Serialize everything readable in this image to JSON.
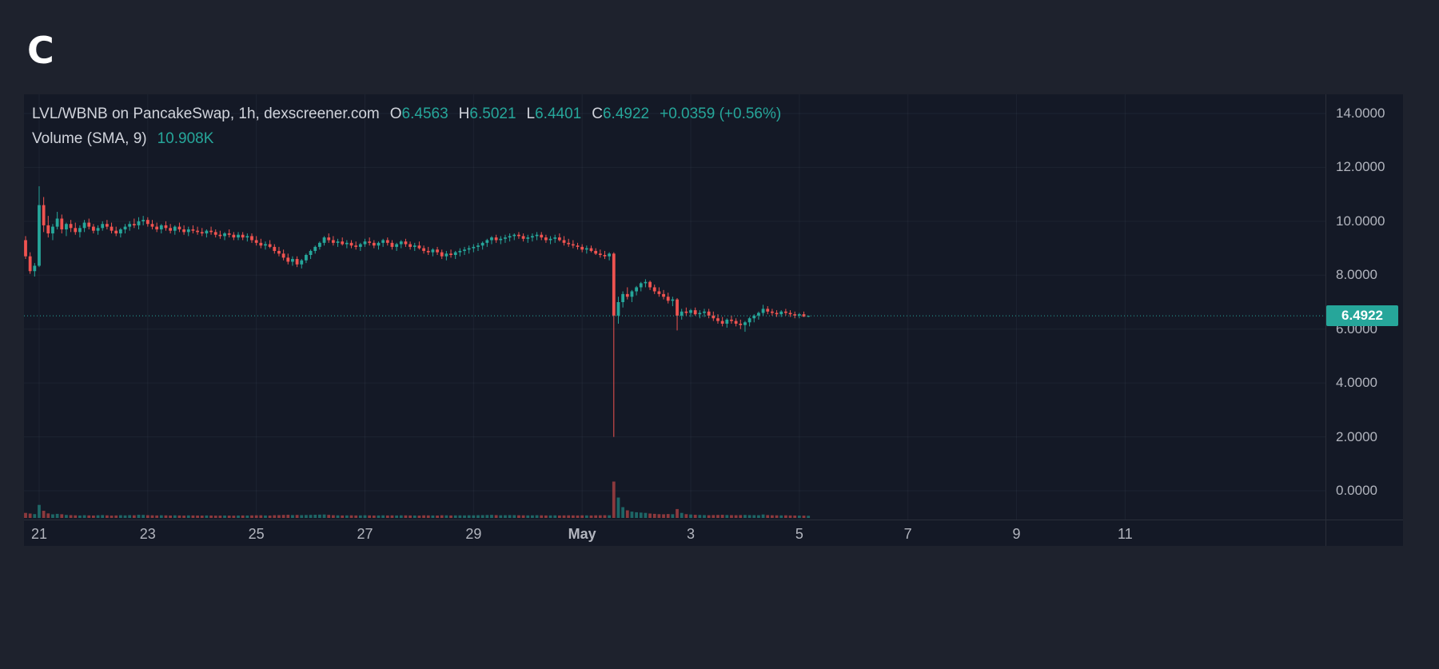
{
  "logo": {
    "text": "C"
  },
  "header": {
    "title": "LVL/WBNB on PancakeSwap, 1h, dexscreener.com",
    "o_label": "O",
    "o_value": "6.4563",
    "h_label": "H",
    "h_value": "6.5021",
    "l_label": "L",
    "l_value": "6.4401",
    "c_label": "C",
    "c_value": "6.4922",
    "change": "+0.0359 (+0.56%)",
    "volume_label": "Volume (SMA, 9)",
    "volume_value": "10.908K"
  },
  "current_price": {
    "label": "6.4922",
    "value": 6.4922
  },
  "colors": {
    "page_bg": "#1e222d",
    "chart_bg": "#141926",
    "up": "#26a69a",
    "down": "#ef5350",
    "accent": "#26a69a",
    "text": "#b2b5be",
    "title_text": "#d1d4dc",
    "grid": "rgba(140,155,180,0.08)",
    "axis_border": "#2a2e39",
    "badge_text": "#ffffff",
    "vol_up": "rgba(38,166,154,0.55)",
    "vol_down": "rgba(239,83,80,0.55)"
  },
  "price_axis": {
    "ticks": [
      {
        "label": "14.0000",
        "value": 14
      },
      {
        "label": "12.0000",
        "value": 12
      },
      {
        "label": "10.0000",
        "value": 10
      },
      {
        "label": "8.0000",
        "value": 8
      },
      {
        "label": "6.0000",
        "value": 6
      },
      {
        "label": "4.0000",
        "value": 4
      },
      {
        "label": "2.0000",
        "value": 2
      },
      {
        "label": "0.0000",
        "value": 0
      }
    ]
  },
  "time_axis": {
    "ticks": [
      {
        "label": "21",
        "idx": 3
      },
      {
        "label": "23",
        "idx": 27
      },
      {
        "label": "25",
        "idx": 51
      },
      {
        "label": "27",
        "idx": 75
      },
      {
        "label": "29",
        "idx": 99
      },
      {
        "label": "May",
        "idx": 123,
        "bold": true
      },
      {
        "label": "3",
        "idx": 147
      },
      {
        "label": "5",
        "idx": 171
      },
      {
        "label": "7",
        "idx": 195
      },
      {
        "label": "9",
        "idx": 219
      },
      {
        "label": "11",
        "idx": 243
      }
    ]
  },
  "chart_data": {
    "type": "candlestick",
    "title": "LVL/WBNB on PancakeSwap, 1h, dexscreener.com",
    "symbol": "LVL/WBNB",
    "exchange": "PancakeSwap",
    "interval": "1h",
    "ohlc_readout": {
      "open": 6.4563,
      "high": 6.5021,
      "low": 6.4401,
      "close": 6.4922,
      "change": "+0.0359 (+0.56%)"
    },
    "volume_sma_readout": "10.908K",
    "ylim": [
      -1.07,
      14.71
    ],
    "x_range": [
      "Apr 21",
      "May 11"
    ],
    "legend_position": "top-left",
    "grid": true,
    "note": "candles estimated from pixels, aggregated ~2h per bar, format [open,high,low,close,volumeK]",
    "candles": [
      [
        9.3,
        9.45,
        8.6,
        8.7,
        6.0
      ],
      [
        8.7,
        8.85,
        8.05,
        8.15,
        5.0
      ],
      [
        8.15,
        8.45,
        7.95,
        8.35,
        4.1
      ],
      [
        8.35,
        11.3,
        8.3,
        10.6,
        18.5
      ],
      [
        10.6,
        10.9,
        9.6,
        9.85,
        9.3
      ],
      [
        9.85,
        10.2,
        9.4,
        9.55,
        5.2
      ],
      [
        9.55,
        9.9,
        9.3,
        9.8,
        3.8
      ],
      [
        9.8,
        10.35,
        9.7,
        10.1,
        4.5
      ],
      [
        10.1,
        10.25,
        9.55,
        9.7,
        3.9
      ],
      [
        9.7,
        9.95,
        9.45,
        9.9,
        2.8
      ],
      [
        9.9,
        10.05,
        9.6,
        9.75,
        2.5
      ],
      [
        9.75,
        9.95,
        9.5,
        9.6,
        2.2
      ],
      [
        9.6,
        9.85,
        9.4,
        9.75,
        2.0
      ],
      [
        9.75,
        10.05,
        9.6,
        9.95,
        2.4
      ],
      [
        9.95,
        10.1,
        9.7,
        9.8,
        2.1
      ],
      [
        9.8,
        9.9,
        9.55,
        9.65,
        1.9
      ],
      [
        9.65,
        9.85,
        9.5,
        9.75,
        2.3
      ],
      [
        9.75,
        10.0,
        9.65,
        9.9,
        2.6
      ],
      [
        9.9,
        10.05,
        9.7,
        9.8,
        2.2
      ],
      [
        9.8,
        9.95,
        9.55,
        9.65,
        1.8
      ],
      [
        9.65,
        9.8,
        9.45,
        9.55,
        2.0
      ],
      [
        9.55,
        9.75,
        9.4,
        9.7,
        2.4
      ],
      [
        9.7,
        9.9,
        9.55,
        9.8,
        2.1
      ],
      [
        9.8,
        10.0,
        9.65,
        9.9,
        2.5
      ],
      [
        9.9,
        10.1,
        9.75,
        9.85,
        2.3
      ],
      [
        9.85,
        10.15,
        9.7,
        10.0,
        3.0
      ],
      [
        10.0,
        10.2,
        9.85,
        10.05,
        2.8
      ],
      [
        10.05,
        10.15,
        9.8,
        9.9,
        2.4
      ],
      [
        9.9,
        10.05,
        9.7,
        9.8,
        2.2
      ],
      [
        9.8,
        9.95,
        9.6,
        9.7,
        2.0
      ],
      [
        9.7,
        9.9,
        9.55,
        9.85,
        2.3
      ],
      [
        9.85,
        10.0,
        9.65,
        9.75,
        2.1
      ],
      [
        9.75,
        9.9,
        9.55,
        9.65,
        1.9
      ],
      [
        9.65,
        9.85,
        9.5,
        9.8,
        2.2
      ],
      [
        9.8,
        9.95,
        9.6,
        9.7,
        2.0
      ],
      [
        9.7,
        9.85,
        9.5,
        9.6,
        1.8
      ],
      [
        9.6,
        9.8,
        9.45,
        9.7,
        2.1
      ],
      [
        9.7,
        9.85,
        9.55,
        9.65,
        2.0
      ],
      [
        9.65,
        9.8,
        9.5,
        9.6,
        1.9
      ],
      [
        9.6,
        9.75,
        9.45,
        9.55,
        1.8
      ],
      [
        9.55,
        9.7,
        9.4,
        9.65,
        2.0
      ],
      [
        9.65,
        9.8,
        9.5,
        9.6,
        1.9
      ],
      [
        9.6,
        9.7,
        9.4,
        9.5,
        1.7
      ],
      [
        9.5,
        9.65,
        9.35,
        9.45,
        1.8
      ],
      [
        9.45,
        9.6,
        9.3,
        9.55,
        1.9
      ],
      [
        9.55,
        9.7,
        9.4,
        9.5,
        1.8
      ],
      [
        9.5,
        9.6,
        9.3,
        9.4,
        1.7
      ],
      [
        9.4,
        9.6,
        9.3,
        9.5,
        1.9
      ],
      [
        9.5,
        9.6,
        9.3,
        9.4,
        2.0
      ],
      [
        9.4,
        9.55,
        9.25,
        9.45,
        1.9
      ],
      [
        9.45,
        9.55,
        9.2,
        9.3,
        2.1
      ],
      [
        9.3,
        9.45,
        9.1,
        9.2,
        2.2
      ],
      [
        9.2,
        9.35,
        9.0,
        9.1,
        2.3
      ],
      [
        9.1,
        9.25,
        8.95,
        9.15,
        2.0
      ],
      [
        9.15,
        9.3,
        9.0,
        9.05,
        1.9
      ],
      [
        9.05,
        9.15,
        8.8,
        8.9,
        2.4
      ],
      [
        8.9,
        9.05,
        8.7,
        8.8,
        2.5
      ],
      [
        8.8,
        8.95,
        8.55,
        8.65,
        2.8
      ],
      [
        8.65,
        8.8,
        8.4,
        8.5,
        3.0
      ],
      [
        8.5,
        8.7,
        8.35,
        8.6,
        2.6
      ],
      [
        8.6,
        8.7,
        8.3,
        8.4,
        2.8
      ],
      [
        8.4,
        8.6,
        8.25,
        8.55,
        2.5
      ],
      [
        8.55,
        8.8,
        8.45,
        8.75,
        2.7
      ],
      [
        8.75,
        8.95,
        8.6,
        8.9,
        2.9
      ],
      [
        8.9,
        9.1,
        8.8,
        9.05,
        3.1
      ],
      [
        9.05,
        9.25,
        8.95,
        9.2,
        3.3
      ],
      [
        9.2,
        9.45,
        9.1,
        9.4,
        3.5
      ],
      [
        9.4,
        9.55,
        9.2,
        9.3,
        2.9
      ],
      [
        9.3,
        9.45,
        9.1,
        9.2,
        2.4
      ],
      [
        9.2,
        9.35,
        9.05,
        9.25,
        2.2
      ],
      [
        9.25,
        9.4,
        9.1,
        9.15,
        2.0
      ],
      [
        9.15,
        9.3,
        9.0,
        9.2,
        2.1
      ],
      [
        9.2,
        9.3,
        9.0,
        9.1,
        2.2
      ],
      [
        9.1,
        9.25,
        8.95,
        9.05,
        2.0
      ],
      [
        9.05,
        9.2,
        8.9,
        9.15,
        2.1
      ],
      [
        9.15,
        9.35,
        9.05,
        9.25,
        2.3
      ],
      [
        9.25,
        9.4,
        9.1,
        9.2,
        2.1
      ],
      [
        9.2,
        9.3,
        9.0,
        9.1,
        1.9
      ],
      [
        9.1,
        9.25,
        8.95,
        9.2,
        2.0
      ],
      [
        9.2,
        9.35,
        9.05,
        9.3,
        2.2
      ],
      [
        9.3,
        9.4,
        9.1,
        9.2,
        2.0
      ],
      [
        9.2,
        9.3,
        8.95,
        9.05,
        2.1
      ],
      [
        9.05,
        9.2,
        8.9,
        9.15,
        2.0
      ],
      [
        9.15,
        9.3,
        9.0,
        9.25,
        2.2
      ],
      [
        9.25,
        9.35,
        9.05,
        9.15,
        2.1
      ],
      [
        9.15,
        9.25,
        8.95,
        9.05,
        2.0
      ],
      [
        9.05,
        9.2,
        8.9,
        9.1,
        1.9
      ],
      [
        9.1,
        9.25,
        8.95,
        9.0,
        1.8
      ],
      [
        9.0,
        9.1,
        8.8,
        8.9,
        2.2
      ],
      [
        8.9,
        9.05,
        8.75,
        8.85,
        2.1
      ],
      [
        8.85,
        9.0,
        8.7,
        8.95,
        2.0
      ],
      [
        8.95,
        9.05,
        8.75,
        8.85,
        1.9
      ],
      [
        8.85,
        8.95,
        8.6,
        8.7,
        2.3
      ],
      [
        8.7,
        8.9,
        8.55,
        8.8,
        2.2
      ],
      [
        8.8,
        8.95,
        8.65,
        8.75,
        2.0
      ],
      [
        8.75,
        8.9,
        8.6,
        8.85,
        2.1
      ],
      [
        8.85,
        9.0,
        8.7,
        8.9,
        2.2
      ],
      [
        8.9,
        9.05,
        8.75,
        8.95,
        2.1
      ],
      [
        8.95,
        9.1,
        8.8,
        9.0,
        2.3
      ],
      [
        9.0,
        9.15,
        8.85,
        9.05,
        2.2
      ],
      [
        9.05,
        9.2,
        8.9,
        9.1,
        2.4
      ],
      [
        9.1,
        9.25,
        8.95,
        9.2,
        2.5
      ],
      [
        9.2,
        9.35,
        9.05,
        9.3,
        2.7
      ],
      [
        9.3,
        9.45,
        9.15,
        9.4,
        2.9
      ],
      [
        9.4,
        9.5,
        9.2,
        9.3,
        2.5
      ],
      [
        9.3,
        9.45,
        9.15,
        9.35,
        2.3
      ],
      [
        9.35,
        9.5,
        9.2,
        9.4,
        2.4
      ],
      [
        9.4,
        9.55,
        9.25,
        9.45,
        2.6
      ],
      [
        9.45,
        9.55,
        9.3,
        9.5,
        2.5
      ],
      [
        9.5,
        9.6,
        9.35,
        9.45,
        2.3
      ],
      [
        9.45,
        9.55,
        9.25,
        9.35,
        2.2
      ],
      [
        9.35,
        9.5,
        9.2,
        9.4,
        2.1
      ],
      [
        9.4,
        9.55,
        9.25,
        9.45,
        2.2
      ],
      [
        9.45,
        9.6,
        9.3,
        9.5,
        2.4
      ],
      [
        9.5,
        9.6,
        9.3,
        9.4,
        2.2
      ],
      [
        9.4,
        9.5,
        9.2,
        9.3,
        2.0
      ],
      [
        9.3,
        9.45,
        9.15,
        9.35,
        2.1
      ],
      [
        9.35,
        9.5,
        9.2,
        9.4,
        2.2
      ],
      [
        9.4,
        9.55,
        9.25,
        9.3,
        2.0
      ],
      [
        9.3,
        9.45,
        9.1,
        9.2,
        2.1
      ],
      [
        9.2,
        9.35,
        9.05,
        9.15,
        2.2
      ],
      [
        9.15,
        9.3,
        9.0,
        9.1,
        2.1
      ],
      [
        9.1,
        9.2,
        8.95,
        9.05,
        2.0
      ],
      [
        9.05,
        9.15,
        8.85,
        8.95,
        2.2
      ],
      [
        8.95,
        9.1,
        8.8,
        9.0,
        2.1
      ],
      [
        9.0,
        9.1,
        8.85,
        8.9,
        2.0
      ],
      [
        8.9,
        9.0,
        8.75,
        8.8,
        2.2
      ],
      [
        8.8,
        8.95,
        8.65,
        8.75,
        2.3
      ],
      [
        8.75,
        8.9,
        8.6,
        8.7,
        2.4
      ],
      [
        8.7,
        8.85,
        8.55,
        8.8,
        2.3
      ],
      [
        8.8,
        8.85,
        2.0,
        6.5,
        55.0
      ],
      [
        6.5,
        7.2,
        6.2,
        7.0,
        30.0
      ],
      [
        7.0,
        7.4,
        6.8,
        7.3,
        15.0
      ],
      [
        7.3,
        7.55,
        7.1,
        7.2,
        10.0
      ],
      [
        7.2,
        7.45,
        7.0,
        7.4,
        8.0
      ],
      [
        7.4,
        7.6,
        7.25,
        7.55,
        7.0
      ],
      [
        7.55,
        7.75,
        7.4,
        7.7,
        6.5
      ],
      [
        7.7,
        7.85,
        7.55,
        7.75,
        6.0
      ],
      [
        7.75,
        7.8,
        7.45,
        7.55,
        5.0
      ],
      [
        7.55,
        7.65,
        7.3,
        7.4,
        4.5
      ],
      [
        7.4,
        7.55,
        7.2,
        7.3,
        4.0
      ],
      [
        7.3,
        7.45,
        7.1,
        7.2,
        3.8
      ],
      [
        7.2,
        7.35,
        6.95,
        7.05,
        4.2
      ],
      [
        7.05,
        7.2,
        6.85,
        7.1,
        3.9
      ],
      [
        7.1,
        7.15,
        5.95,
        6.5,
        12.0
      ],
      [
        6.5,
        6.75,
        6.35,
        6.65,
        6.0
      ],
      [
        6.65,
        6.8,
        6.5,
        6.6,
        4.0
      ],
      [
        6.6,
        6.75,
        6.45,
        6.7,
        3.5
      ],
      [
        6.7,
        6.8,
        6.5,
        6.55,
        3.0
      ],
      [
        6.55,
        6.7,
        6.4,
        6.6,
        2.8
      ],
      [
        6.6,
        6.75,
        6.45,
        6.65,
        2.6
      ],
      [
        6.65,
        6.75,
        6.4,
        6.5,
        2.4
      ],
      [
        6.5,
        6.65,
        6.3,
        6.4,
        2.6
      ],
      [
        6.4,
        6.55,
        6.2,
        6.3,
        2.8
      ],
      [
        6.3,
        6.45,
        6.1,
        6.2,
        3.0
      ],
      [
        6.2,
        6.4,
        6.05,
        6.35,
        2.7
      ],
      [
        6.35,
        6.5,
        6.2,
        6.3,
        2.5
      ],
      [
        6.3,
        6.4,
        6.1,
        6.2,
        2.4
      ],
      [
        6.2,
        6.35,
        6.0,
        6.15,
        2.6
      ],
      [
        6.15,
        6.3,
        5.9,
        6.25,
        2.8
      ],
      [
        6.25,
        6.45,
        6.1,
        6.4,
        2.6
      ],
      [
        6.4,
        6.55,
        6.25,
        6.5,
        2.5
      ],
      [
        6.5,
        6.65,
        6.35,
        6.6,
        2.4
      ],
      [
        6.6,
        6.9,
        6.5,
        6.75,
        3.5
      ],
      [
        6.75,
        6.85,
        6.55,
        6.65,
        2.6
      ],
      [
        6.65,
        6.75,
        6.5,
        6.6,
        2.3
      ],
      [
        6.6,
        6.7,
        6.45,
        6.55,
        2.2
      ],
      [
        6.55,
        6.7,
        6.45,
        6.65,
        2.1
      ],
      [
        6.65,
        6.75,
        6.5,
        6.6,
        2.2
      ],
      [
        6.6,
        6.7,
        6.45,
        6.55,
        2.0
      ],
      [
        6.55,
        6.65,
        6.4,
        6.5,
        1.9
      ],
      [
        6.5,
        6.6,
        6.4,
        6.55,
        1.8
      ],
      [
        6.55,
        6.65,
        6.45,
        6.46,
        1.7
      ],
      [
        6.46,
        6.5,
        6.44,
        6.49,
        1.5
      ]
    ]
  }
}
